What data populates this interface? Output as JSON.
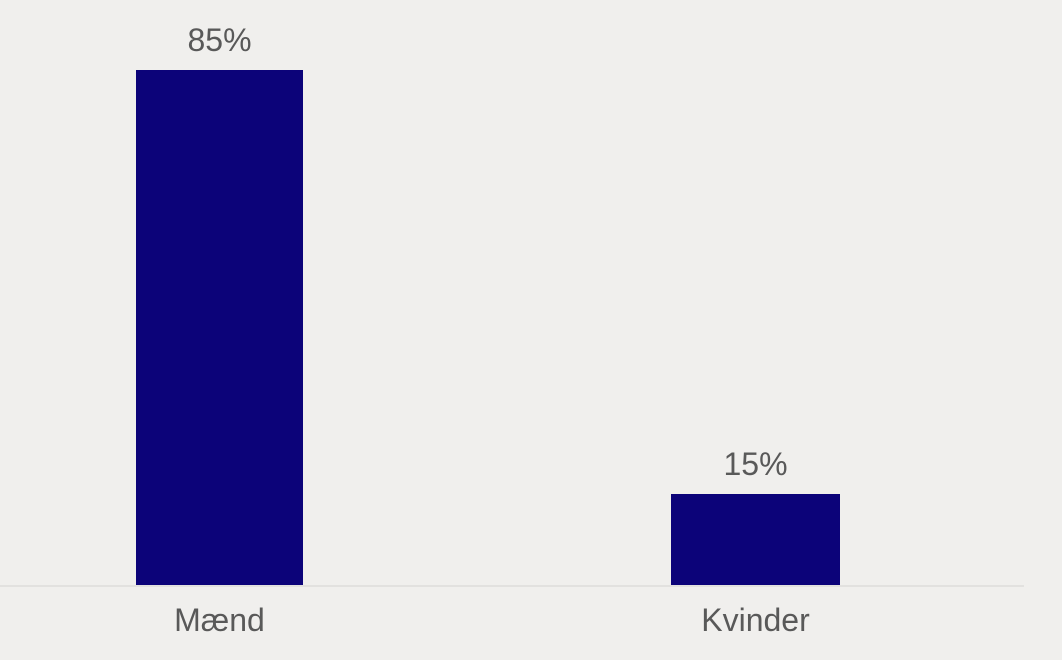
{
  "chart_data": {
    "type": "bar",
    "categories": [
      "Mænd",
      "Kvinder"
    ],
    "values": [
      85,
      15
    ],
    "data_labels": [
      "85%",
      "15%"
    ],
    "title": "",
    "xlabel": "",
    "ylabel": "",
    "ylim": [
      0,
      100
    ],
    "grid": false,
    "legend": false,
    "bar_color": "#0C0379",
    "background_color": "#F0EFED",
    "label_color": "#595959",
    "axis_line_color": "#E2E1DF"
  }
}
